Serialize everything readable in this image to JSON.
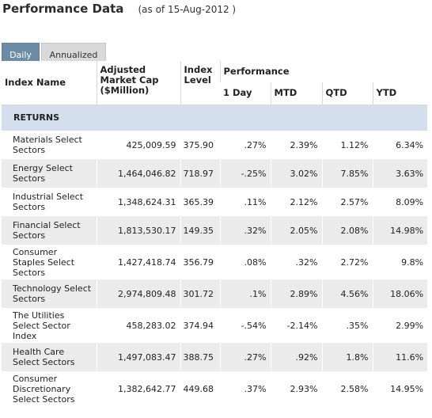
{
  "header": {
    "title": "Performance Data",
    "as_of": "(as of 15-Aug-2012 )"
  },
  "tabs": [
    {
      "label": "Daily",
      "active": true
    },
    {
      "label": "Annualized",
      "active": false
    }
  ],
  "columns": {
    "index_name": "Index Name",
    "market_cap": "Adjusted Market Cap ($Million)",
    "index_level": "Index Level",
    "performance": "Performance",
    "one_day": "1 Day",
    "mtd": "MTD",
    "qtd": "QTD",
    "ytd": "YTD"
  },
  "section": "RETURNS",
  "rows": [
    {
      "name": "Materials Select Sectors",
      "cap": "425,009.59",
      "level": "375.90",
      "d1": ".27%",
      "mtd": "2.39%",
      "qtd": "1.12%",
      "ytd": "6.34%"
    },
    {
      "name": "Energy Select Sectors",
      "cap": "1,464,046.82",
      "level": "718.97",
      "d1": "-.25%",
      "mtd": "3.02%",
      "qtd": "7.85%",
      "ytd": "3.63%"
    },
    {
      "name": "Industrial Select Sectors",
      "cap": "1,348,624.31",
      "level": "365.39",
      "d1": ".11%",
      "mtd": "2.12%",
      "qtd": "2.57%",
      "ytd": "8.09%"
    },
    {
      "name": "Financial Select Sectors",
      "cap": "1,813,530.17",
      "level": "149.35",
      "d1": ".32%",
      "mtd": "2.05%",
      "qtd": "2.08%",
      "ytd": "14.98%"
    },
    {
      "name": "Consumer Staples Select Sectors",
      "cap": "1,427,418.74",
      "level": "356.79",
      "d1": ".08%",
      "mtd": ".32%",
      "qtd": "2.72%",
      "ytd": "9.8%"
    },
    {
      "name": "Technology Select Sectors",
      "cap": "2,974,809.48",
      "level": "301.72",
      "d1": ".1%",
      "mtd": "2.89%",
      "qtd": "4.56%",
      "ytd": "18.06%"
    },
    {
      "name": "The Utilities Select Sector Index",
      "cap": "458,283.02",
      "level": "374.94",
      "d1": "-.54%",
      "mtd": "-2.14%",
      "qtd": ".35%",
      "ytd": "2.99%"
    },
    {
      "name": "Health Care Select Sectors",
      "cap": "1,497,083.47",
      "level": "388.75",
      "d1": ".27%",
      "mtd": ".92%",
      "qtd": "1.8%",
      "ytd": "11.6%"
    },
    {
      "name": "Consumer Discretionary Select Sectors",
      "cap": "1,382,642.77",
      "level": "449.68",
      "d1": ".37%",
      "mtd": "2.93%",
      "qtd": "2.58%",
      "ytd": "14.95%"
    }
  ]
}
